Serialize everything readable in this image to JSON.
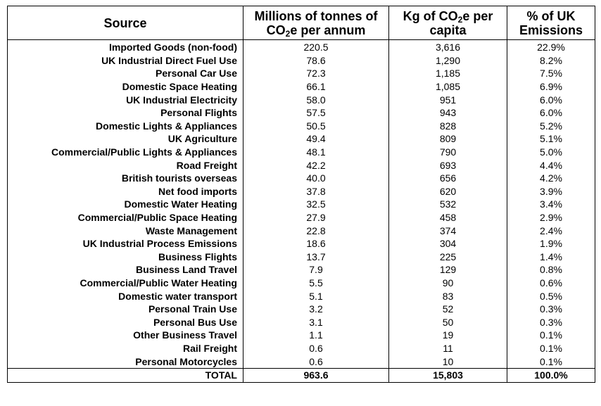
{
  "table": {
    "headers": {
      "source": "Source",
      "mt_line1": "Millions of tonnes of",
      "mt_line2_pre": "CO",
      "mt_line2_sub": "2",
      "mt_line2_post": "e per annum",
      "kg_line1_pre": "Kg of CO",
      "kg_line1_sub": "2",
      "kg_line1_post": "e per",
      "kg_line2": "capita",
      "pct_line1": "% of UK",
      "pct_line2": "Emissions"
    },
    "rows": [
      {
        "source": "Imported Goods (non-food)",
        "mt": "220.5",
        "kg": "3,616",
        "pct": "22.9%"
      },
      {
        "source": "UK Industrial Direct Fuel Use",
        "mt": "78.6",
        "kg": "1,290",
        "pct": "8.2%"
      },
      {
        "source": "Personal Car Use",
        "mt": "72.3",
        "kg": "1,185",
        "pct": "7.5%"
      },
      {
        "source": "Domestic Space Heating",
        "mt": "66.1",
        "kg": "1,085",
        "pct": "6.9%"
      },
      {
        "source": "UK Industrial Electricity",
        "mt": "58.0",
        "kg": "951",
        "pct": "6.0%"
      },
      {
        "source": "Personal Flights",
        "mt": "57.5",
        "kg": "943",
        "pct": "6.0%"
      },
      {
        "source": "Domestic Lights & Appliances",
        "mt": "50.5",
        "kg": "828",
        "pct": "5.2%"
      },
      {
        "source": "UK Agriculture",
        "mt": "49.4",
        "kg": "809",
        "pct": "5.1%"
      },
      {
        "source": "Commercial/Public Lights & Appliances",
        "mt": "48.1",
        "kg": "790",
        "pct": "5.0%"
      },
      {
        "source": "Road Freight",
        "mt": "42.2",
        "kg": "693",
        "pct": "4.4%"
      },
      {
        "source": "British tourists overseas",
        "mt": "40.0",
        "kg": "656",
        "pct": "4.2%"
      },
      {
        "source": "Net food imports",
        "mt": "37.8",
        "kg": "620",
        "pct": "3.9%"
      },
      {
        "source": "Domestic Water Heating",
        "mt": "32.5",
        "kg": "532",
        "pct": "3.4%"
      },
      {
        "source": "Commercial/Public Space Heating",
        "mt": "27.9",
        "kg": "458",
        "pct": "2.9%"
      },
      {
        "source": "Waste Management",
        "mt": "22.8",
        "kg": "374",
        "pct": "2.4%"
      },
      {
        "source": "UK Industrial Process Emissions",
        "mt": "18.6",
        "kg": "304",
        "pct": "1.9%"
      },
      {
        "source": "Business Flights",
        "mt": "13.7",
        "kg": "225",
        "pct": "1.4%"
      },
      {
        "source": "Business Land Travel",
        "mt": "7.9",
        "kg": "129",
        "pct": "0.8%"
      },
      {
        "source": "Commercial/Public Water Heating",
        "mt": "5.5",
        "kg": "90",
        "pct": "0.6%"
      },
      {
        "source": "Domestic water transport",
        "mt": "5.1",
        "kg": "83",
        "pct": "0.5%"
      },
      {
        "source": "Personal Train Use",
        "mt": "3.2",
        "kg": "52",
        "pct": "0.3%"
      },
      {
        "source": "Personal Bus Use",
        "mt": "3.1",
        "kg": "50",
        "pct": "0.3%"
      },
      {
        "source": "Other Business Travel",
        "mt": "1.1",
        "kg": "19",
        "pct": "0.1%"
      },
      {
        "source": "Rail Freight",
        "mt": "0.6",
        "kg": "11",
        "pct": "0.1%"
      },
      {
        "source": "Personal Motorcycles",
        "mt": "0.6",
        "kg": "10",
        "pct": "0.1%"
      }
    ],
    "total": {
      "source": "TOTAL",
      "mt": "963.6",
      "kg": "15,803",
      "pct": "100.0%"
    }
  }
}
